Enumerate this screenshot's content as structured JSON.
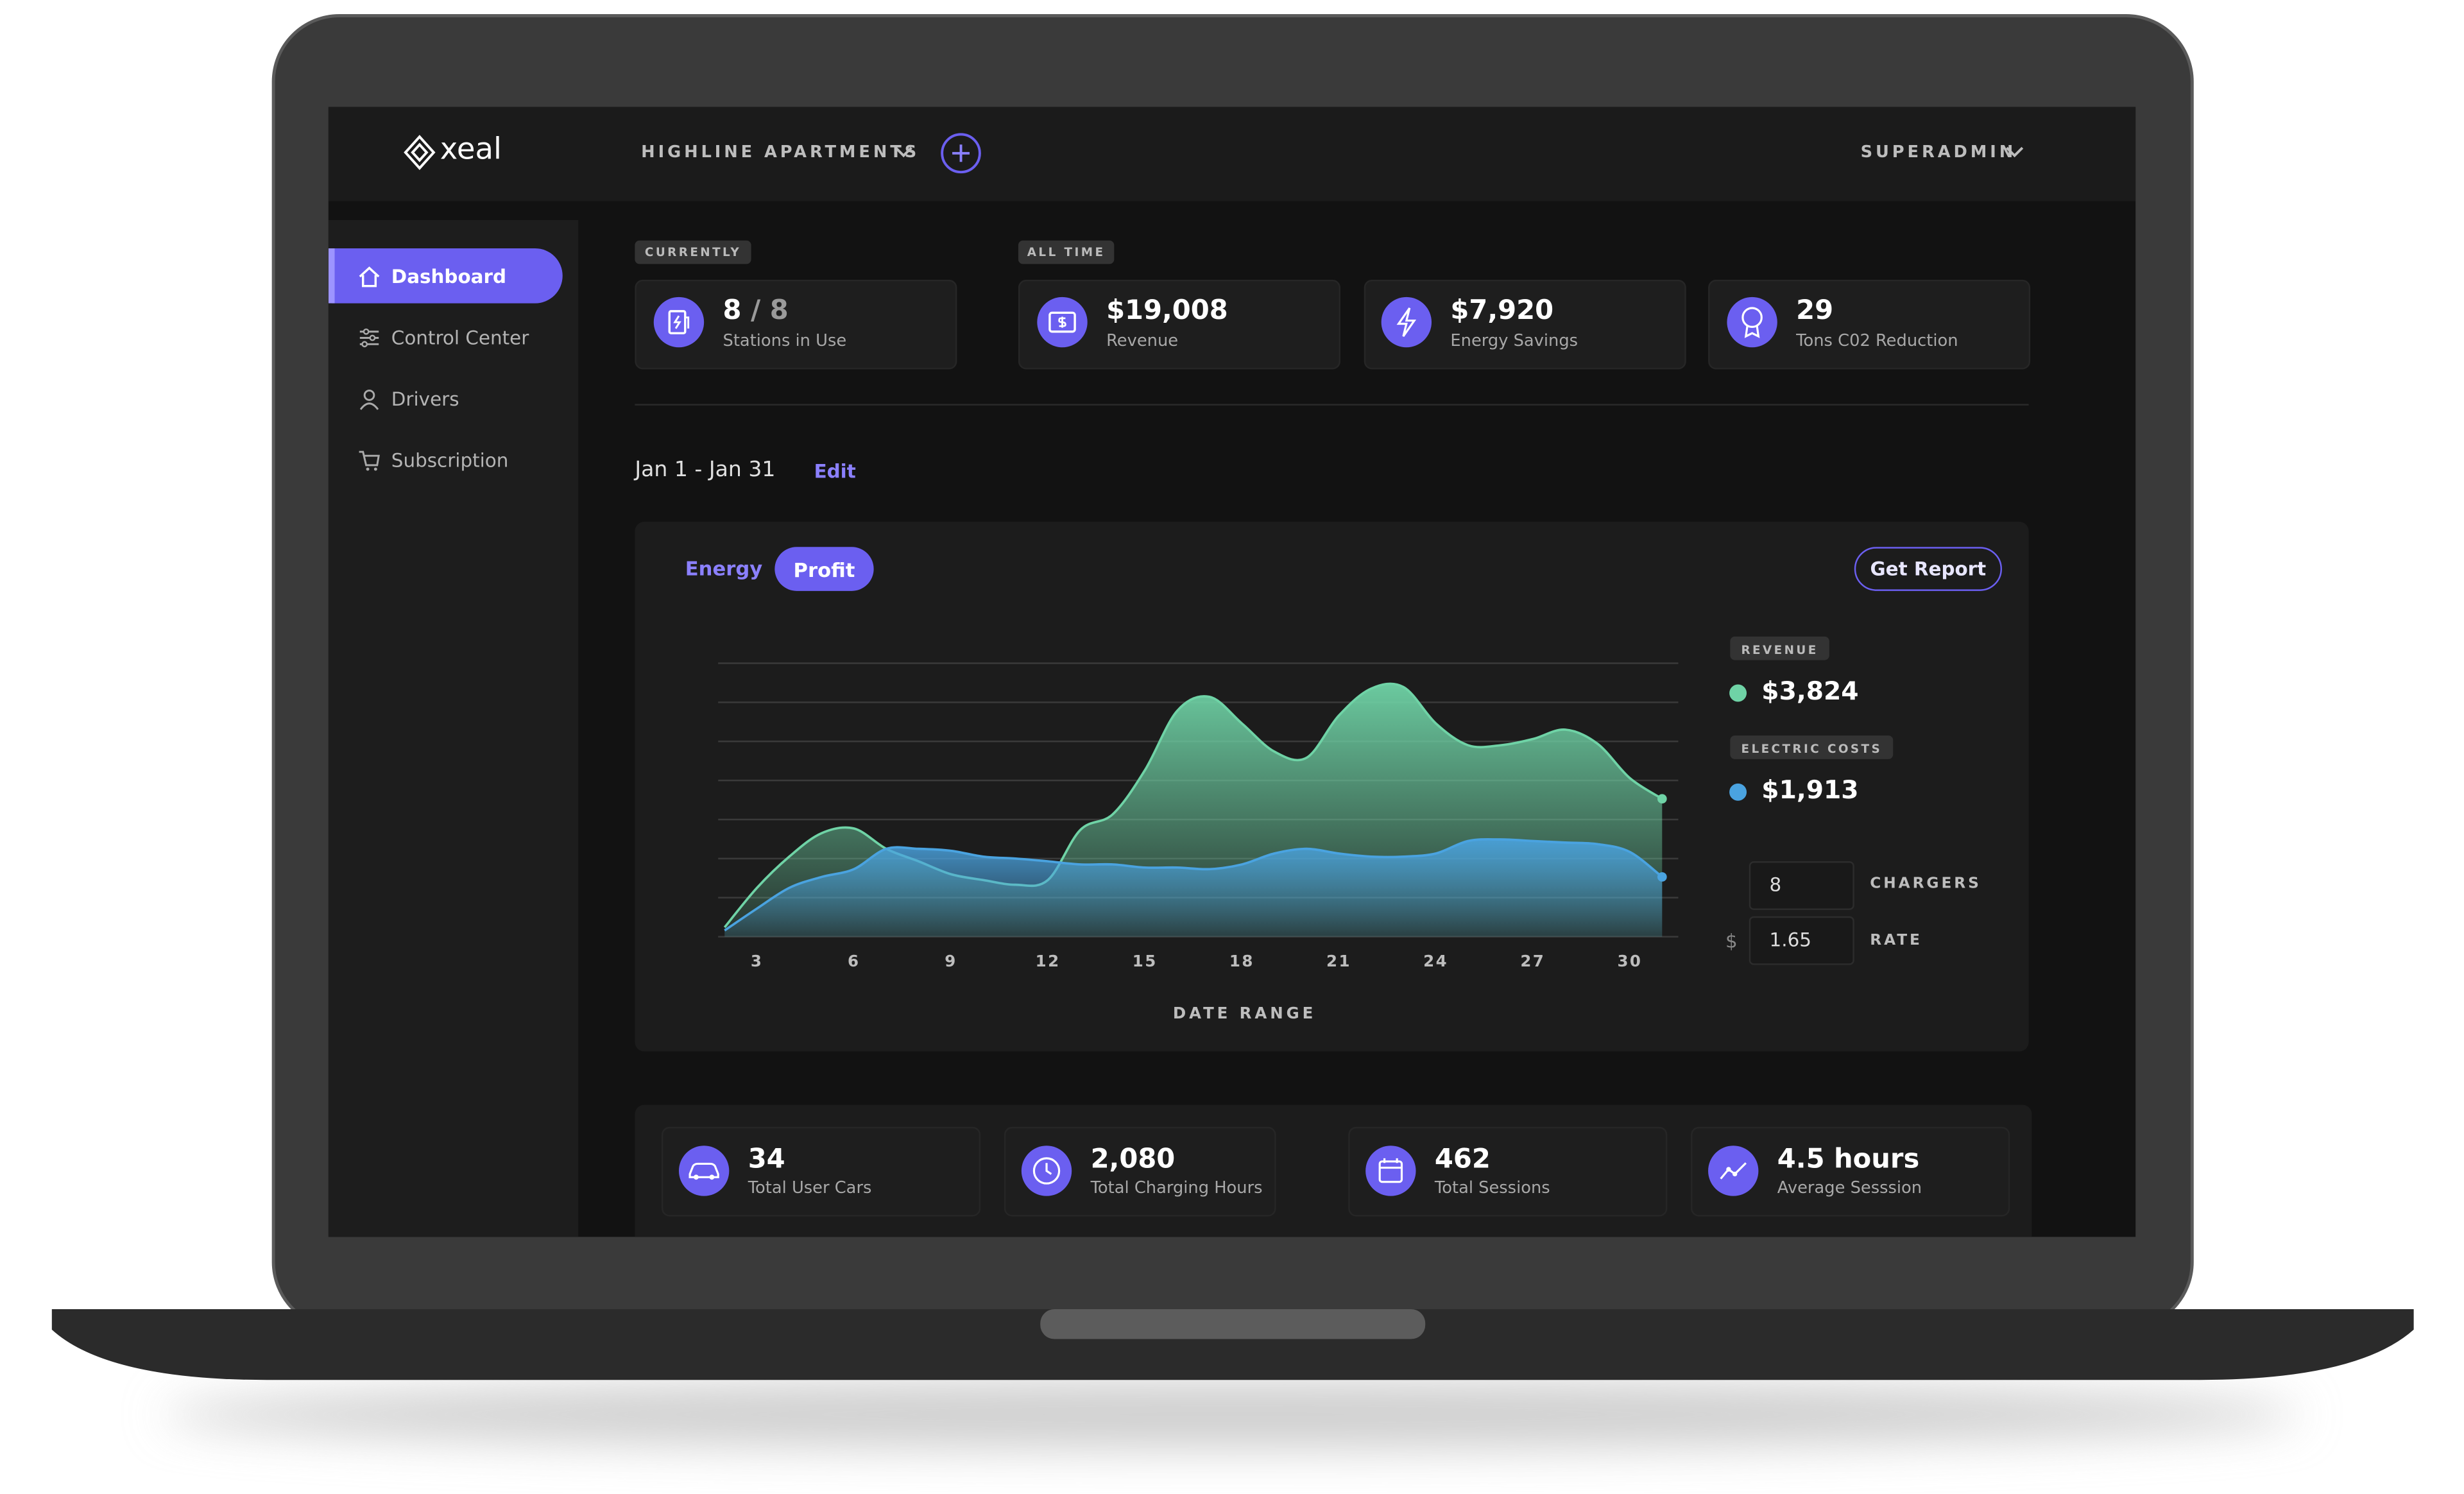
{
  "header": {
    "brand": "xeal",
    "property": "HIGHLINE APARTMENTS",
    "user": "SUPERADMIN"
  },
  "sidebar": {
    "items": [
      "Dashboard",
      "Control Center",
      "Drivers",
      "Subscription"
    ]
  },
  "summary": {
    "currently": "CURRENTLY",
    "all_time": "ALL TIME",
    "cards": [
      {
        "value": "8",
        "total": "/ 8",
        "label": "Stations in Use"
      },
      {
        "value": "$19,008",
        "label": "Revenue"
      },
      {
        "value": "$7,920",
        "label": "Energy Savings"
      },
      {
        "value": "29",
        "label": "Tons C02 Reduction"
      }
    ]
  },
  "period": {
    "range": "Jan 1 - Jan 31",
    "edit": "Edit"
  },
  "panel": {
    "tabs": [
      "Energy",
      "Profit"
    ],
    "report": "Get Report",
    "legend_values": [
      "$3,824",
      "$1,913"
    ],
    "inputs": [
      {
        "value": "8",
        "label": "CHARGERS"
      },
      {
        "prefix": "$",
        "value": "1.65",
        "label": "RATE"
      }
    ]
  },
  "chart_data": {
    "type": "area",
    "xlabel": "DATE RANGE",
    "x": [
      2,
      3,
      4,
      5,
      6,
      7,
      8,
      9,
      10,
      11,
      12,
      13,
      14,
      15,
      16,
      17,
      18,
      19,
      20,
      21,
      22,
      23,
      24,
      25,
      26,
      27,
      28,
      29,
      30,
      31
    ],
    "xlim": [
      1.8,
      31.5
    ],
    "xticks": [
      3,
      6,
      9,
      12,
      15,
      18,
      21,
      24,
      27,
      30
    ],
    "ylim": [
      0,
      7
    ],
    "yticks": [
      0,
      1,
      2,
      3,
      4,
      5,
      6,
      7
    ],
    "grid": true,
    "series": [
      {
        "name": "REVENUE",
        "color": "#6fd3a6",
        "values": [
          0.24,
          1.25,
          2.05,
          2.65,
          2.77,
          2.25,
          1.93,
          1.6,
          1.45,
          1.33,
          1.45,
          2.73,
          3.13,
          4.26,
          5.78,
          6.14,
          5.46,
          4.74,
          4.58,
          5.66,
          6.35,
          6.39,
          5.46,
          4.9,
          4.9,
          5.06,
          5.3,
          4.94,
          4.06,
          3.53
        ]
      },
      {
        "name": "ELECTRIC COSTS",
        "color": "#4aa3e0",
        "values": [
          0.16,
          0.72,
          1.25,
          1.53,
          1.73,
          2.25,
          2.25,
          2.2,
          2.05,
          2.0,
          1.93,
          1.85,
          1.85,
          1.77,
          1.77,
          1.73,
          1.85,
          2.13,
          2.25,
          2.13,
          2.05,
          2.05,
          2.13,
          2.45,
          2.49,
          2.45,
          2.41,
          2.37,
          2.17,
          1.53
        ]
      }
    ]
  },
  "footer_cards": [
    {
      "value": "34",
      "label": "Total User Cars"
    },
    {
      "value": "2,080",
      "label": "Total Charging Hours"
    },
    {
      "value": "462",
      "label": "Total Sessions"
    },
    {
      "value": "4.5 hours",
      "label": "Average Sesssion"
    }
  ]
}
